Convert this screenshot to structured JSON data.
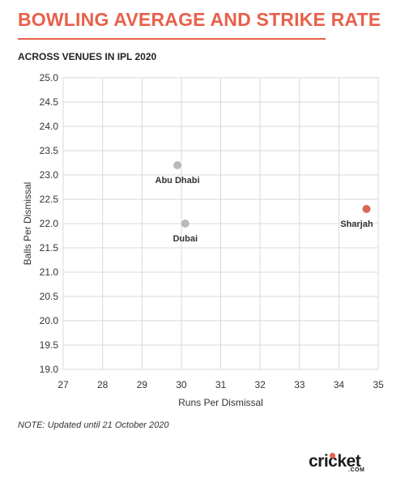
{
  "header": {
    "title": "BOWLING AVERAGE AND STRIKE RATE",
    "subtitle": "ACROSS VENUES IN IPL 2020"
  },
  "footer": {
    "note": "NOTE: Updated until 21 October 2020",
    "logo_text": "cricket",
    "logo_suffix": ".COM"
  },
  "colors": {
    "accent": "#e8604a",
    "highlight_point": "#d9675a",
    "default_point": "#b9b9b9",
    "grid": "#d9d9d9"
  },
  "chart_data": {
    "type": "scatter",
    "title": "BOWLING AVERAGE AND STRIKE RATE",
    "subtitle": "ACROSS VENUES IN IPL 2020",
    "xlabel": "Runs Per Dismissal",
    "ylabel": "Balls Per Dismissal",
    "xlim": [
      27,
      35
    ],
    "ylim": [
      19.0,
      25.0
    ],
    "x_ticks": [
      "27",
      "28",
      "29",
      "30",
      "31",
      "32",
      "33",
      "34",
      "35"
    ],
    "y_ticks": [
      "19.0",
      "19.5",
      "20.0",
      "20.5",
      "21.0",
      "21.5",
      "22.0",
      "22.5",
      "23.0",
      "23.5",
      "24.0",
      "24.5",
      "25.0"
    ],
    "grid": true,
    "points": [
      {
        "label": "Abu Dhabi",
        "x": 29.9,
        "y": 23.2,
        "highlight": false
      },
      {
        "label": "Dubai",
        "x": 30.1,
        "y": 22.0,
        "highlight": false
      },
      {
        "label": "Sharjah",
        "x": 34.7,
        "y": 22.3,
        "highlight": true
      }
    ]
  }
}
